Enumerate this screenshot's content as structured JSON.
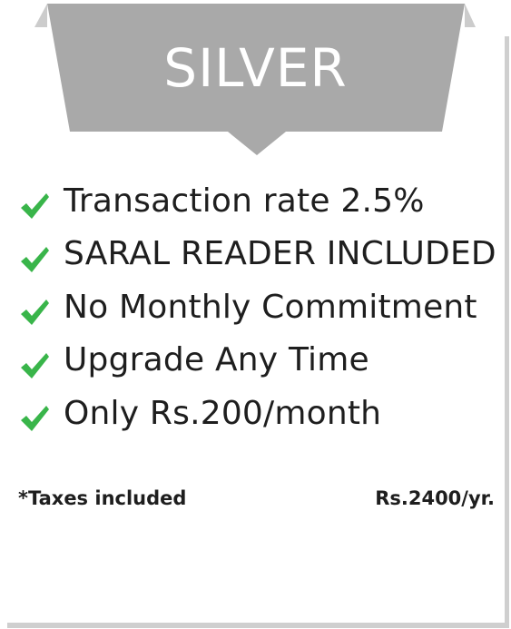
{
  "plan": {
    "title": "SILVER",
    "features": [
      {
        "label": "Transaction rate 2.5%",
        "icon": "check-icon"
      },
      {
        "label": "SARAL READER INCLUDED",
        "icon": "check-icon"
      },
      {
        "label": "No Monthly Commitment",
        "icon": "check-icon"
      },
      {
        "label": "Upgrade Any Time",
        "icon": "check-icon"
      },
      {
        "label": "Only Rs.200/month",
        "icon": "check-icon"
      }
    ],
    "taxes_note": "*Taxes included",
    "price": "Rs.2400/yr."
  },
  "colors": {
    "ribbon": "#a9a9a9",
    "ribbon_fold": "#c9c9c9",
    "check": "#39b54a",
    "text": "#1e1e1e"
  }
}
